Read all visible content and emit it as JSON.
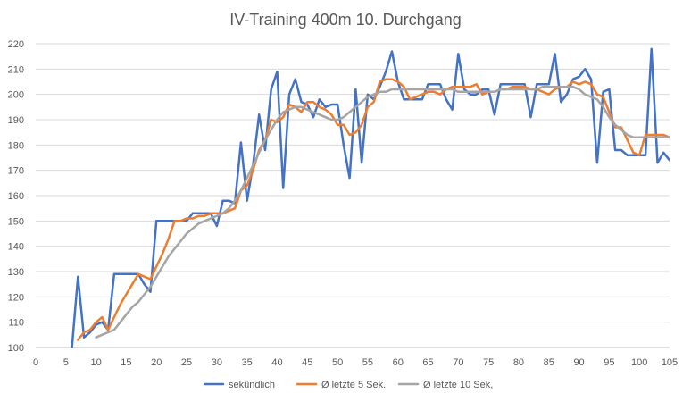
{
  "chart_data": {
    "type": "line",
    "title": "IV-Training 400m 10. Durchgang",
    "xlabel": "",
    "ylabel": "",
    "xlim": [
      0,
      105
    ],
    "ylim": [
      100,
      220
    ],
    "x_ticks": [
      0,
      5,
      10,
      15,
      20,
      25,
      30,
      35,
      40,
      45,
      50,
      55,
      60,
      65,
      70,
      75,
      80,
      85,
      90,
      95,
      100,
      105
    ],
    "y_ticks": [
      100,
      110,
      120,
      130,
      140,
      150,
      160,
      170,
      180,
      190,
      200,
      210,
      220
    ],
    "grid": true,
    "legend_position": "bottom",
    "series": [
      {
        "name": "sekündlich",
        "color": "#4472C4",
        "x": [
          6,
          7,
          8,
          9,
          10,
          11,
          12,
          13,
          14,
          15,
          16,
          17,
          18,
          19,
          20,
          21,
          22,
          23,
          24,
          25,
          26,
          27,
          28,
          29,
          30,
          31,
          32,
          33,
          34,
          35,
          36,
          37,
          38,
          39,
          40,
          41,
          42,
          43,
          44,
          45,
          46,
          47,
          48,
          49,
          50,
          51,
          52,
          53,
          54,
          55,
          56,
          57,
          58,
          59,
          60,
          61,
          62,
          63,
          64,
          65,
          66,
          67,
          68,
          69,
          70,
          71,
          72,
          73,
          74,
          75,
          76,
          77,
          78,
          79,
          80,
          81,
          82,
          83,
          84,
          85,
          86,
          87,
          88,
          89,
          90,
          91,
          92,
          93,
          94,
          95,
          96,
          97,
          98,
          99,
          100,
          101,
          102,
          103,
          104,
          105
        ],
        "values": [
          100,
          128,
          104,
          106,
          109,
          110,
          107,
          129,
          129,
          129,
          129,
          129,
          125,
          122,
          150,
          150,
          150,
          150,
          150,
          150,
          153,
          153,
          153,
          153,
          148,
          158,
          158,
          157,
          181,
          158,
          172,
          192,
          178,
          202,
          209,
          163,
          200,
          206,
          197,
          196,
          191,
          198,
          195,
          196,
          196,
          180,
          167,
          202,
          173,
          200,
          198,
          203,
          209,
          217,
          205,
          198,
          198,
          198,
          198,
          204,
          204,
          204,
          198,
          194,
          216,
          202,
          200,
          200,
          202,
          202,
          192,
          204,
          204,
          204,
          204,
          204,
          191,
          204,
          204,
          204,
          216,
          197,
          200,
          206,
          207,
          210,
          206,
          173,
          201,
          202,
          178,
          178,
          176,
          176,
          176,
          176,
          218,
          173,
          177,
          174
        ]
      },
      {
        "name": "Ø letzte 5 Sek.",
        "color": "#ED7D31",
        "x": [
          7,
          8,
          9,
          10,
          11,
          12,
          13,
          14,
          15,
          16,
          17,
          18,
          19,
          20,
          21,
          22,
          23,
          24,
          25,
          26,
          27,
          28,
          29,
          30,
          31,
          32,
          33,
          34,
          35,
          36,
          37,
          38,
          39,
          40,
          41,
          42,
          43,
          44,
          45,
          46,
          47,
          48,
          49,
          50,
          51,
          52,
          53,
          54,
          55,
          56,
          57,
          58,
          59,
          60,
          61,
          62,
          63,
          64,
          65,
          66,
          67,
          68,
          69,
          70,
          71,
          72,
          73,
          74,
          75,
          76,
          77,
          78,
          79,
          80,
          81,
          82,
          83,
          84,
          85,
          86,
          87,
          88,
          89,
          90,
          91,
          92,
          93,
          94,
          95,
          96,
          97,
          98,
          99,
          100,
          101,
          102,
          103,
          104,
          105
        ],
        "values": [
          103,
          106,
          107,
          110,
          112,
          107,
          112,
          117,
          121,
          125,
          129,
          128,
          127,
          132,
          137,
          143,
          150,
          150,
          151,
          151,
          152,
          152,
          153,
          153,
          153,
          154,
          155,
          162,
          164,
          170,
          178,
          182,
          190,
          189,
          191,
          196,
          195,
          193,
          197,
          197,
          195,
          194,
          192,
          188,
          188,
          184,
          185,
          188,
          195,
          197,
          205,
          206,
          206,
          205,
          203,
          198,
          199,
          200,
          201,
          201,
          200,
          202,
          203,
          203,
          203,
          203,
          204,
          200,
          201,
          201,
          202,
          202,
          203,
          203,
          203,
          202,
          202,
          201,
          200,
          202,
          203,
          203,
          205,
          204,
          205,
          204,
          200,
          199,
          193,
          187,
          187,
          182,
          177,
          176,
          184,
          184,
          184,
          184,
          183
        ]
      },
      {
        "name": "Ø letzte 10 Sek,",
        "color": "#A5A5A5",
        "x": [
          10,
          11,
          12,
          13,
          14,
          15,
          16,
          17,
          18,
          19,
          20,
          21,
          22,
          23,
          24,
          25,
          26,
          27,
          28,
          29,
          30,
          31,
          32,
          33,
          34,
          35,
          36,
          37,
          38,
          39,
          40,
          41,
          42,
          43,
          44,
          45,
          46,
          47,
          48,
          49,
          50,
          51,
          52,
          53,
          54,
          55,
          56,
          57,
          58,
          59,
          60,
          61,
          62,
          63,
          64,
          65,
          66,
          67,
          68,
          69,
          70,
          71,
          72,
          73,
          74,
          75,
          76,
          77,
          78,
          79,
          80,
          81,
          82,
          83,
          84,
          85,
          86,
          87,
          88,
          89,
          90,
          91,
          92,
          93,
          94,
          95,
          96,
          97,
          98,
          99,
          100,
          101,
          102,
          103,
          104,
          105
        ],
        "values": [
          104,
          105,
          106,
          107,
          110,
          113,
          116,
          118,
          121,
          124,
          128,
          132,
          136,
          139,
          142,
          145,
          147,
          149,
          150,
          151,
          152,
          153,
          155,
          158,
          162,
          167,
          172,
          177,
          182,
          186,
          190,
          193,
          194,
          195,
          195,
          194,
          193,
          192,
          191,
          190,
          190,
          191,
          193,
          195,
          197,
          199,
          200,
          201,
          201,
          202,
          202,
          202,
          202,
          202,
          202,
          202,
          202,
          202,
          202,
          202,
          201,
          201,
          201,
          201,
          201,
          201,
          201,
          202,
          202,
          202,
          202,
          202,
          202,
          202,
          203,
          203,
          203,
          203,
          203,
          203,
          202,
          200,
          199,
          198,
          195,
          191,
          188,
          186,
          184,
          183,
          183,
          183,
          183,
          183,
          183,
          183
        ]
      }
    ]
  }
}
